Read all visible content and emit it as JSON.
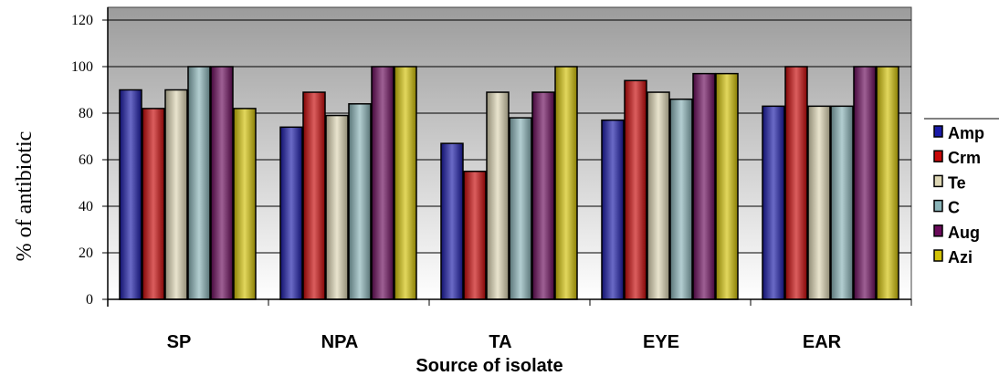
{
  "chart_data": {
    "type": "bar",
    "title": "",
    "xlabel": "Source of isolate",
    "ylabel": "% of antibiotic",
    "ylim": [
      0,
      120
    ],
    "yticks": [
      0,
      20,
      40,
      60,
      80,
      100,
      120
    ],
    "grid": true,
    "legend_position": "right",
    "categories": [
      "SP",
      "NPA",
      "TA",
      "EYE",
      "EAR"
    ],
    "series": [
      {
        "name": "Amp",
        "color": "#1a1aa8",
        "values": [
          90,
          74,
          67,
          77,
          83
        ]
      },
      {
        "name": "Crm",
        "color": "#c80808",
        "values": [
          82,
          89,
          55,
          94,
          100
        ]
      },
      {
        "name": "Te",
        "color": "#ddd6b4",
        "values": [
          90,
          79,
          89,
          89,
          83
        ]
      },
      {
        "name": "C",
        "color": "#8ab4b8",
        "values": [
          100,
          84,
          78,
          86,
          83
        ]
      },
      {
        "name": "Aug",
        "color": "#6a0a5a",
        "values": [
          100,
          100,
          89,
          97,
          100
        ]
      },
      {
        "name": "Azi",
        "color": "#d2c206",
        "values": [
          82,
          100,
          100,
          97,
          100
        ]
      }
    ]
  }
}
